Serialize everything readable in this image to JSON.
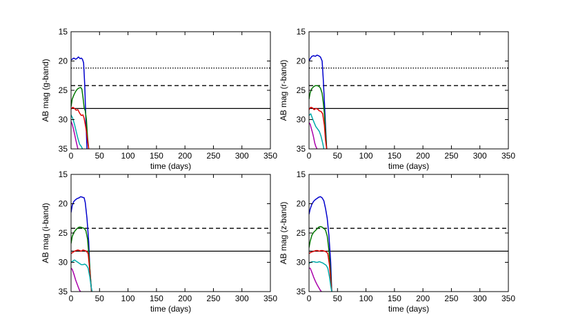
{
  "chart_data": [
    {
      "type": "line",
      "band": "g",
      "xlabel": "time (days)",
      "ylabel": "AB mag (g-band)",
      "xlim": [
        0,
        350
      ],
      "ylim": [
        35,
        15
      ],
      "y_inverted": true,
      "xticks": [
        0,
        50,
        100,
        150,
        200,
        250,
        300,
        350
      ],
      "yticks": [
        15,
        20,
        25,
        30,
        35
      ],
      "reference_lines": [
        {
          "style": "dotted",
          "y": 21.2
        },
        {
          "style": "dashed",
          "y": 24.2
        },
        {
          "style": "solid",
          "y": 28.1
        }
      ],
      "series": [
        {
          "color": "#0000cc",
          "x": [
            0,
            2,
            5,
            8,
            10,
            13,
            16,
            18,
            20,
            22,
            24,
            26,
            28
          ],
          "y": [
            19.8,
            19.7,
            19.5,
            19.7,
            19.6,
            19.3,
            19.6,
            19.5,
            19.7,
            20.3,
            24.0,
            30.0,
            35.0
          ]
        },
        {
          "color": "#007700",
          "x": [
            0,
            2,
            5,
            8,
            11,
            14,
            17,
            19,
            21,
            23,
            25,
            27,
            29,
            31
          ],
          "y": [
            27.8,
            26.5,
            25.8,
            25.2,
            24.8,
            24.6,
            24.5,
            24.8,
            26.2,
            28.0,
            28.5,
            30.0,
            33.0,
            35.0
          ]
        },
        {
          "color": "#dd0000",
          "x": [
            0,
            3,
            6,
            9,
            12,
            15,
            18,
            21,
            23,
            25,
            27,
            29,
            31
          ],
          "y": [
            28.2,
            27.9,
            28.1,
            28.4,
            28.3,
            28.9,
            29.3,
            29.2,
            29.8,
            30.8,
            32.0,
            33.5,
            35.0
          ]
        },
        {
          "color": "#00aaaa",
          "x": [
            0,
            3,
            6,
            9,
            12,
            15,
            18,
            20
          ],
          "y": [
            29.2,
            29.8,
            30.8,
            32.0,
            33.2,
            34.2,
            34.6,
            35.0
          ]
        },
        {
          "color": "#aa00aa",
          "x": [
            0,
            2,
            4,
            6,
            8,
            10,
            12
          ],
          "y": [
            30.3,
            30.8,
            31.5,
            32.4,
            33.3,
            34.2,
            35.0
          ]
        }
      ]
    },
    {
      "type": "line",
      "band": "r",
      "xlabel": "time (days)",
      "ylabel": "AB mag (r-band)",
      "xlim": [
        0,
        350
      ],
      "ylim": [
        35,
        15
      ],
      "y_inverted": true,
      "xticks": [
        0,
        50,
        100,
        150,
        200,
        250,
        300,
        350
      ],
      "yticks": [
        15,
        20,
        25,
        30,
        35
      ],
      "reference_lines": [
        {
          "style": "dotted",
          "y": 21.2
        },
        {
          "style": "dashed",
          "y": 24.2
        },
        {
          "style": "solid",
          "y": 28.1
        }
      ],
      "series": [
        {
          "color": "#0000cc",
          "x": [
            0,
            2,
            5,
            8,
            11,
            14,
            17,
            20,
            23,
            25,
            27,
            29,
            31
          ],
          "y": [
            20.0,
            19.6,
            19.2,
            19.1,
            19.2,
            19.0,
            19.1,
            19.3,
            20.0,
            23.0,
            27.0,
            31.0,
            35.0
          ]
        },
        {
          "color": "#007700",
          "x": [
            0,
            2,
            5,
            8,
            11,
            14,
            17,
            20,
            23,
            25,
            27,
            29,
            31
          ],
          "y": [
            26.5,
            25.4,
            24.7,
            24.4,
            24.2,
            24.2,
            24.3,
            24.6,
            25.5,
            27.0,
            29.0,
            32.0,
            35.0
          ]
        },
        {
          "color": "#dd0000",
          "x": [
            0,
            3,
            6,
            9,
            12,
            15,
            18,
            21,
            24,
            27,
            29,
            31
          ],
          "y": [
            28.3,
            27.9,
            28.0,
            28.3,
            28.1,
            28.2,
            28.5,
            28.6,
            29.0,
            31.0,
            33.5,
            35.0
          ]
        },
        {
          "color": "#00aaaa",
          "x": [
            0,
            3,
            6,
            9,
            12,
            15,
            18,
            21,
            24,
            26
          ],
          "y": [
            29.3,
            29.0,
            29.8,
            30.5,
            31.2,
            31.6,
            32.0,
            32.8,
            34.0,
            35.0
          ]
        },
        {
          "color": "#aa00aa",
          "x": [
            0,
            2,
            4,
            6,
            8,
            10,
            12,
            14
          ],
          "y": [
            30.5,
            30.8,
            31.5,
            32.2,
            33.0,
            34.0,
            34.6,
            35.0
          ]
        }
      ]
    },
    {
      "type": "line",
      "band": "i",
      "xlabel": "time (days)",
      "ylabel": "AB mag (i-band)",
      "xlim": [
        0,
        350
      ],
      "ylim": [
        35,
        15
      ],
      "y_inverted": true,
      "xticks": [
        0,
        50,
        100,
        150,
        200,
        250,
        300,
        350
      ],
      "yticks": [
        15,
        20,
        25,
        30,
        35
      ],
      "reference_lines": [
        {
          "style": "dashed",
          "y": 24.2
        },
        {
          "style": "solid",
          "y": 28.1
        }
      ],
      "series": [
        {
          "color": "#0000cc",
          "x": [
            0,
            2,
            5,
            8,
            11,
            14,
            17,
            20,
            23,
            25,
            28,
            31,
            33,
            36
          ],
          "y": [
            21.5,
            20.3,
            19.6,
            19.3,
            19.1,
            19.0,
            18.8,
            18.9,
            19.0,
            19.8,
            22.5,
            26.5,
            31.0,
            35.0
          ]
        },
        {
          "color": "#007700",
          "x": [
            0,
            2,
            5,
            8,
            11,
            14,
            17,
            20,
            23,
            26,
            29,
            32,
            34,
            36
          ],
          "y": [
            26.8,
            25.6,
            24.9,
            24.5,
            24.2,
            24.0,
            24.0,
            24.1,
            24.2,
            24.6,
            26.0,
            29.5,
            32.5,
            35.0
          ]
        },
        {
          "color": "#dd0000",
          "x": [
            0,
            3,
            6,
            9,
            12,
            15,
            18,
            21,
            24,
            27,
            30,
            32,
            34,
            36
          ],
          "y": [
            28.5,
            28.3,
            28.1,
            28.0,
            27.9,
            28.0,
            28.1,
            27.9,
            28.0,
            28.1,
            28.5,
            30.5,
            33.0,
            35.0
          ]
        },
        {
          "color": "#00aaaa",
          "x": [
            0,
            3,
            6,
            9,
            12,
            15,
            18,
            21,
            24,
            27,
            30,
            33,
            35,
            37
          ],
          "y": [
            30.0,
            29.8,
            29.6,
            29.8,
            30.0,
            30.2,
            30.4,
            30.4,
            30.3,
            30.5,
            31.0,
            32.5,
            34.0,
            35.0
          ]
        },
        {
          "color": "#aa00aa",
          "x": [
            0,
            2,
            5,
            8,
            11,
            13,
            15,
            17
          ],
          "y": [
            31.0,
            31.2,
            32.0,
            33.0,
            33.8,
            34.3,
            34.8,
            35.0
          ]
        }
      ]
    },
    {
      "type": "line",
      "band": "z",
      "xlabel": "time (days)",
      "ylabel": "AB mag (z-band)",
      "xlim": [
        0,
        350
      ],
      "ylim": [
        35,
        15
      ],
      "y_inverted": true,
      "xticks": [
        0,
        50,
        100,
        150,
        200,
        250,
        300,
        350
      ],
      "yticks": [
        15,
        20,
        25,
        30,
        35
      ],
      "reference_lines": [
        {
          "style": "dashed",
          "y": 24.2
        },
        {
          "style": "solid",
          "y": 28.1
        }
      ],
      "series": [
        {
          "color": "#0000cc",
          "x": [
            0,
            2,
            5,
            8,
            11,
            14,
            17,
            20,
            23,
            26,
            29,
            32,
            35,
            38,
            40
          ],
          "y": [
            21.8,
            20.9,
            20.1,
            19.6,
            19.3,
            19.1,
            18.9,
            18.8,
            19.0,
            19.5,
            20.8,
            22.5,
            25.5,
            30.0,
            35.0
          ]
        },
        {
          "color": "#007700",
          "x": [
            0,
            2,
            5,
            8,
            11,
            14,
            17,
            20,
            23,
            26,
            29,
            32,
            35,
            38,
            40
          ],
          "y": [
            27.5,
            26.4,
            25.4,
            24.9,
            24.6,
            24.3,
            24.0,
            23.9,
            24.0,
            24.2,
            24.5,
            25.5,
            28.0,
            32.0,
            35.0
          ]
        },
        {
          "color": "#dd0000",
          "x": [
            0,
            3,
            6,
            9,
            12,
            15,
            18,
            21,
            24,
            27,
            30,
            33,
            36,
            38,
            40
          ],
          "y": [
            28.5,
            28.3,
            28.2,
            28.1,
            28.0,
            28.0,
            28.1,
            28.0,
            28.0,
            28.1,
            28.2,
            28.5,
            30.5,
            33.0,
            35.0
          ]
        },
        {
          "color": "#00aaaa",
          "x": [
            0,
            3,
            6,
            9,
            12,
            15,
            18,
            21,
            24,
            27,
            30,
            33,
            36,
            38,
            40
          ],
          "y": [
            30.2,
            30.0,
            29.9,
            29.9,
            30.0,
            30.0,
            29.9,
            30.0,
            30.1,
            30.3,
            30.5,
            31.0,
            32.5,
            34.0,
            35.0
          ]
        },
        {
          "color": "#aa00aa",
          "x": [
            0,
            2,
            5,
            8,
            11,
            14,
            17,
            20,
            22
          ],
          "y": [
            31.0,
            31.0,
            31.7,
            32.5,
            33.2,
            33.8,
            34.3,
            34.8,
            35.0
          ]
        }
      ]
    }
  ]
}
